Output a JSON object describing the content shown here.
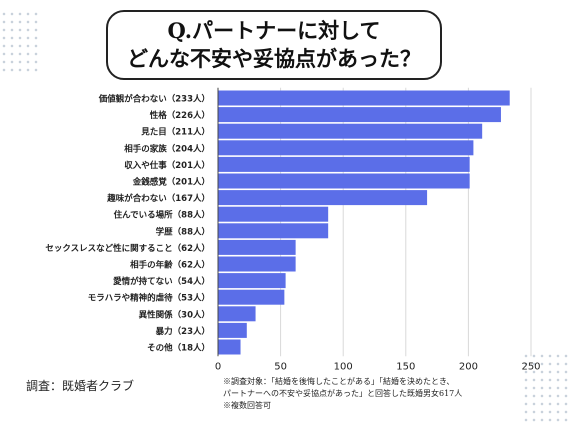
{
  "title": {
    "line1": "Q.パートナーに対して",
    "line2": "どんな不安や妥協点があった？"
  },
  "chart_data": {
    "type": "bar",
    "orientation": "horizontal",
    "categories": [
      "価値観が合わない（233人）",
      "性格（226人）",
      "見た目（211人）",
      "相手の家族（204人）",
      "収入や仕事（201人）",
      "金銭感覚（201人）",
      "趣味が合わない（167人）",
      "住んでいる場所（88人）",
      "学歴（88人）",
      "セックスレスなど性に関すること（62人）",
      "相手の年齢（62人）",
      "愛情が持てない（54人）",
      "モラハラや精神的虐待（53人）",
      "異性関係（30人）",
      "暴力（23人）",
      "その他（18人）"
    ],
    "values": [
      233,
      226,
      211,
      204,
      201,
      201,
      167,
      88,
      88,
      62,
      62,
      54,
      53,
      30,
      23,
      18
    ],
    "xlim": [
      0,
      250
    ],
    "xticks": [
      "0",
      "50",
      "100",
      "150",
      "200",
      "250"
    ],
    "grid": true,
    "bar_color": "#5b6ee8"
  },
  "source": "調査：既婚者クラブ",
  "notes": [
    "※調査対象：「結婚を後悔したことがある」「結婚を決めたとき、",
    "パートナーへの不安や妥協点があった」と回答した既婚男女617人",
    "※複数回答可"
  ]
}
